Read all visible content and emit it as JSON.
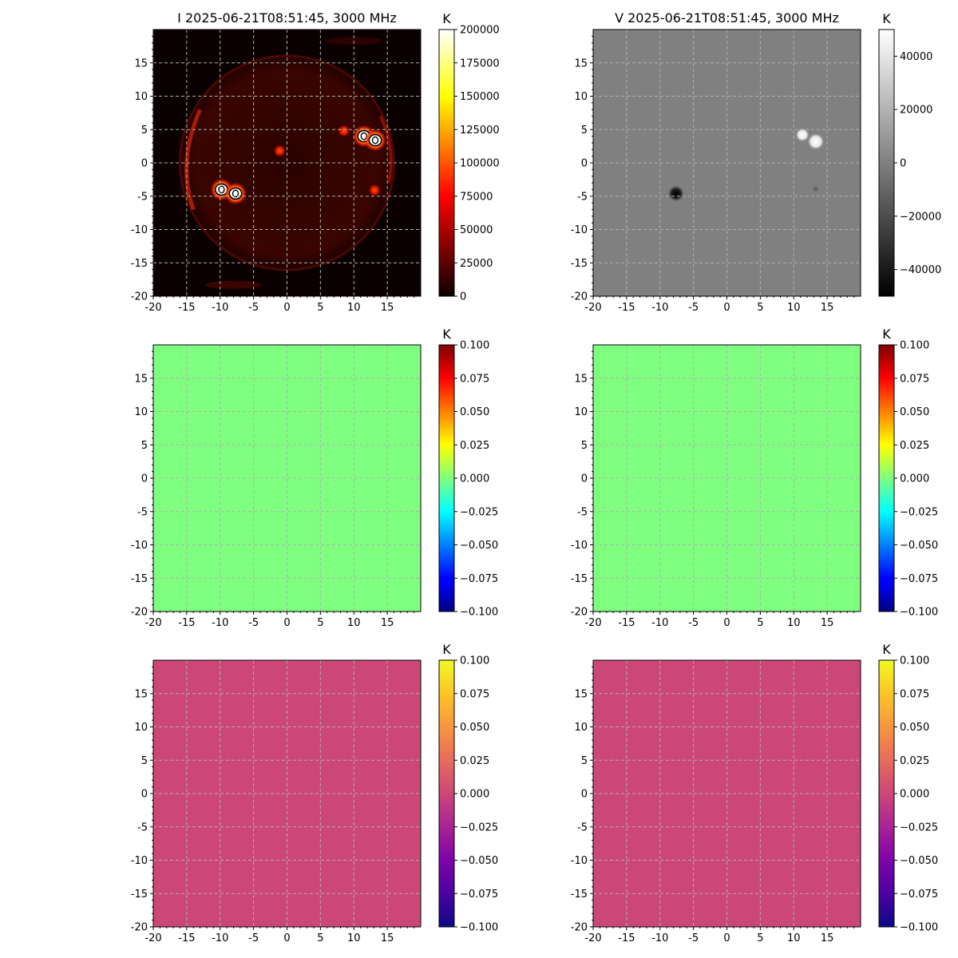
{
  "figure": {
    "panels": [
      {
        "title": "I 2025-06-21T08:51:45, 3000 MHz",
        "unit": "K",
        "colormap": "hot",
        "cbar_ticks": [
          "200000",
          "175000",
          "150000",
          "125000",
          "100000",
          "75000",
          "50000",
          "25000",
          "0"
        ],
        "content": "sun-intensity"
      },
      {
        "title": "V 2025-06-21T08:51:45, 3000 MHz",
        "unit": "K",
        "colormap": "gray",
        "cbar_ticks": [
          "40000",
          "20000",
          "0",
          "−20000",
          "−40000"
        ],
        "content": "sun-polarization"
      },
      {
        "title": "",
        "unit": "K",
        "colormap": "jet",
        "cbar_ticks": [
          "0.100",
          "0.075",
          "0.050",
          "0.025",
          "0.000",
          "−0.025",
          "−0.050",
          "−0.075",
          "−0.100"
        ],
        "content": "uniform",
        "fill": "#7fff7f"
      },
      {
        "title": "",
        "unit": "K",
        "colormap": "jet",
        "cbar_ticks": [
          "0.100",
          "0.075",
          "0.050",
          "0.025",
          "0.000",
          "−0.025",
          "−0.050",
          "−0.075",
          "−0.100"
        ],
        "content": "uniform",
        "fill": "#7fff7f"
      },
      {
        "title": "",
        "unit": "K",
        "colormap": "plasma",
        "cbar_ticks": [
          "0.100",
          "0.075",
          "0.050",
          "0.025",
          "0.000",
          "−0.025",
          "−0.050",
          "−0.075",
          "−0.100"
        ],
        "content": "uniform",
        "fill": "#cc4778"
      },
      {
        "title": "",
        "unit": "K",
        "colormap": "plasma",
        "cbar_ticks": [
          "0.100",
          "0.075",
          "0.050",
          "0.025",
          "0.000",
          "−0.025",
          "−0.050",
          "−0.075",
          "−0.100"
        ],
        "content": "uniform",
        "fill": "#cc4778"
      }
    ],
    "x_tick_labels": [
      "-20",
      "-15",
      "-10",
      "-5",
      "0",
      "5",
      "10",
      "15"
    ],
    "y_tick_labels": [
      "15",
      "10",
      "5",
      "0",
      "-5",
      "-10",
      "-15",
      "-20"
    ]
  },
  "chart_data": [
    {
      "type": "heatmap",
      "title": "I 2025-06-21T08:51:45, 3000 MHz",
      "colorbar_label": "K",
      "colorbar_range": [
        0,
        200000
      ],
      "colormap": "hot",
      "xlim": [
        -20,
        20
      ],
      "ylim": [
        -20,
        20
      ],
      "grid": true,
      "bright_sources": [
        {
          "x": 11.5,
          "y": 4.0
        },
        {
          "x": 13.2,
          "y": 3.4
        },
        {
          "x": 8.5,
          "y": 4.8
        },
        {
          "x": -9.8,
          "y": -4.0
        },
        {
          "x": -7.7,
          "y": -4.6
        },
        {
          "x": 13.1,
          "y": -4.1
        },
        {
          "x": -1.1,
          "y": 1.8
        }
      ]
    },
    {
      "type": "heatmap",
      "title": "V 2025-06-21T08:51:45, 3000 MHz",
      "colorbar_label": "K",
      "colorbar_range": [
        -50000,
        50000
      ],
      "colormap": "gray",
      "xlim": [
        -20,
        20
      ],
      "ylim": [
        -20,
        20
      ],
      "grid": true,
      "sources": [
        {
          "x": 11.3,
          "y": 4.2,
          "sign": "positive"
        },
        {
          "x": 13.3,
          "y": 3.2,
          "sign": "positive"
        },
        {
          "x": -7.6,
          "y": -4.6,
          "sign": "negative"
        },
        {
          "x": 13.3,
          "y": -3.9,
          "sign": "negative"
        }
      ]
    },
    {
      "type": "heatmap",
      "title": "",
      "colorbar_label": "K",
      "colorbar_range": [
        -0.1,
        0.1
      ],
      "colormap": "jet",
      "xlim": [
        -20,
        20
      ],
      "ylim": [
        -20,
        20
      ],
      "grid": true,
      "uniform_value": 0.0
    },
    {
      "type": "heatmap",
      "title": "",
      "colorbar_label": "K",
      "colorbar_range": [
        -0.1,
        0.1
      ],
      "colormap": "jet",
      "xlim": [
        -20,
        20
      ],
      "ylim": [
        -20,
        20
      ],
      "grid": true,
      "uniform_value": 0.0
    },
    {
      "type": "heatmap",
      "title": "",
      "colorbar_label": "K",
      "colorbar_range": [
        -0.1,
        0.1
      ],
      "colormap": "plasma",
      "xlim": [
        -20,
        20
      ],
      "ylim": [
        -20,
        20
      ],
      "grid": true,
      "uniform_value": 0.0
    },
    {
      "type": "heatmap",
      "title": "",
      "colorbar_label": "K",
      "colorbar_range": [
        -0.1,
        0.1
      ],
      "colormap": "plasma",
      "xlim": [
        -20,
        20
      ],
      "ylim": [
        -20,
        20
      ],
      "grid": true,
      "uniform_value": 0.0
    }
  ]
}
